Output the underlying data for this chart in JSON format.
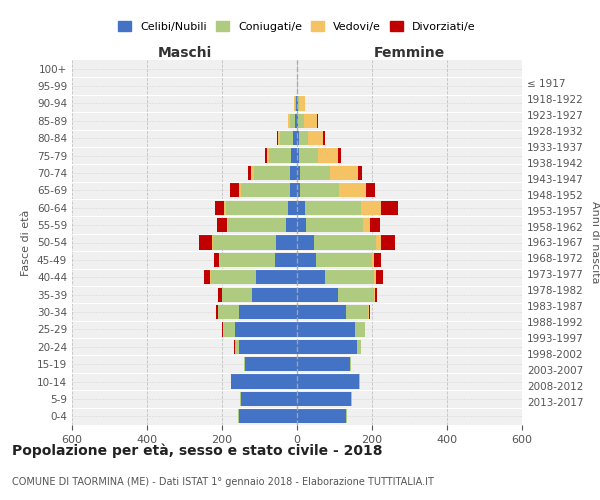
{
  "age_groups": [
    "0-4",
    "5-9",
    "10-14",
    "15-19",
    "20-24",
    "25-29",
    "30-34",
    "35-39",
    "40-44",
    "45-49",
    "50-54",
    "55-59",
    "60-64",
    "65-69",
    "70-74",
    "75-79",
    "80-84",
    "85-89",
    "90-94",
    "95-99",
    "100+"
  ],
  "birth_years": [
    "2013-2017",
    "2008-2012",
    "2003-2007",
    "1998-2002",
    "1993-1997",
    "1988-1992",
    "1983-1987",
    "1978-1982",
    "1973-1977",
    "1968-1972",
    "1963-1967",
    "1958-1962",
    "1953-1957",
    "1948-1952",
    "1943-1947",
    "1938-1942",
    "1933-1937",
    "1928-1932",
    "1923-1927",
    "1918-1922",
    "≤ 1917"
  ],
  "male": {
    "celibi": [
      155,
      150,
      175,
      140,
      155,
      165,
      155,
      120,
      110,
      60,
      55,
      30,
      25,
      20,
      20,
      15,
      10,
      5,
      3,
      1,
      1
    ],
    "coniugati": [
      2,
      2,
      2,
      2,
      10,
      30,
      55,
      80,
      120,
      145,
      170,
      155,
      165,
      130,
      95,
      60,
      35,
      15,
      3,
      0,
      0
    ],
    "vedovi": [
      0,
      0,
      0,
      0,
      0,
      2,
      1,
      1,
      2,
      2,
      2,
      3,
      5,
      5,
      8,
      5,
      5,
      5,
      3,
      0,
      0
    ],
    "divorziati": [
      0,
      0,
      0,
      0,
      2,
      2,
      5,
      10,
      15,
      15,
      35,
      25,
      25,
      25,
      8,
      5,
      3,
      0,
      0,
      0,
      0
    ]
  },
  "female": {
    "nubili": [
      130,
      145,
      165,
      140,
      160,
      155,
      130,
      110,
      75,
      50,
      45,
      25,
      20,
      8,
      8,
      5,
      5,
      3,
      2,
      1,
      1
    ],
    "coniugate": [
      2,
      2,
      3,
      3,
      10,
      25,
      60,
      95,
      130,
      150,
      165,
      150,
      150,
      105,
      80,
      50,
      25,
      15,
      3,
      0,
      0
    ],
    "vedove": [
      0,
      0,
      0,
      0,
      0,
      1,
      2,
      2,
      5,
      5,
      15,
      20,
      55,
      70,
      75,
      55,
      40,
      35,
      15,
      2,
      0
    ],
    "divorziate": [
      0,
      0,
      0,
      0,
      0,
      0,
      2,
      5,
      20,
      20,
      35,
      25,
      45,
      25,
      10,
      8,
      5,
      3,
      0,
      0,
      0
    ]
  },
  "colors": {
    "celibi_nubili": "#4472C4",
    "coniugati": "#AECB80",
    "vedovi": "#F5C264",
    "divorziati": "#C00000"
  },
  "xlim": 600,
  "title": "Popolazione per età, sesso e stato civile - 2018",
  "subtitle": "COMUNE DI TAORMINA (ME) - Dati ISTAT 1° gennaio 2018 - Elaborazione TUTTITALIA.IT",
  "ylabel_left": "Fasce di età",
  "ylabel_right": "Anni di nascita",
  "xlabel_left": "Maschi",
  "xlabel_right": "Femmine",
  "legend_labels": [
    "Celibi/Nubili",
    "Coniugati/e",
    "Vedovi/e",
    "Divorziati/e"
  ],
  "bg_color": "#FFFFFF",
  "plot_bg_color": "#F0F0F0"
}
